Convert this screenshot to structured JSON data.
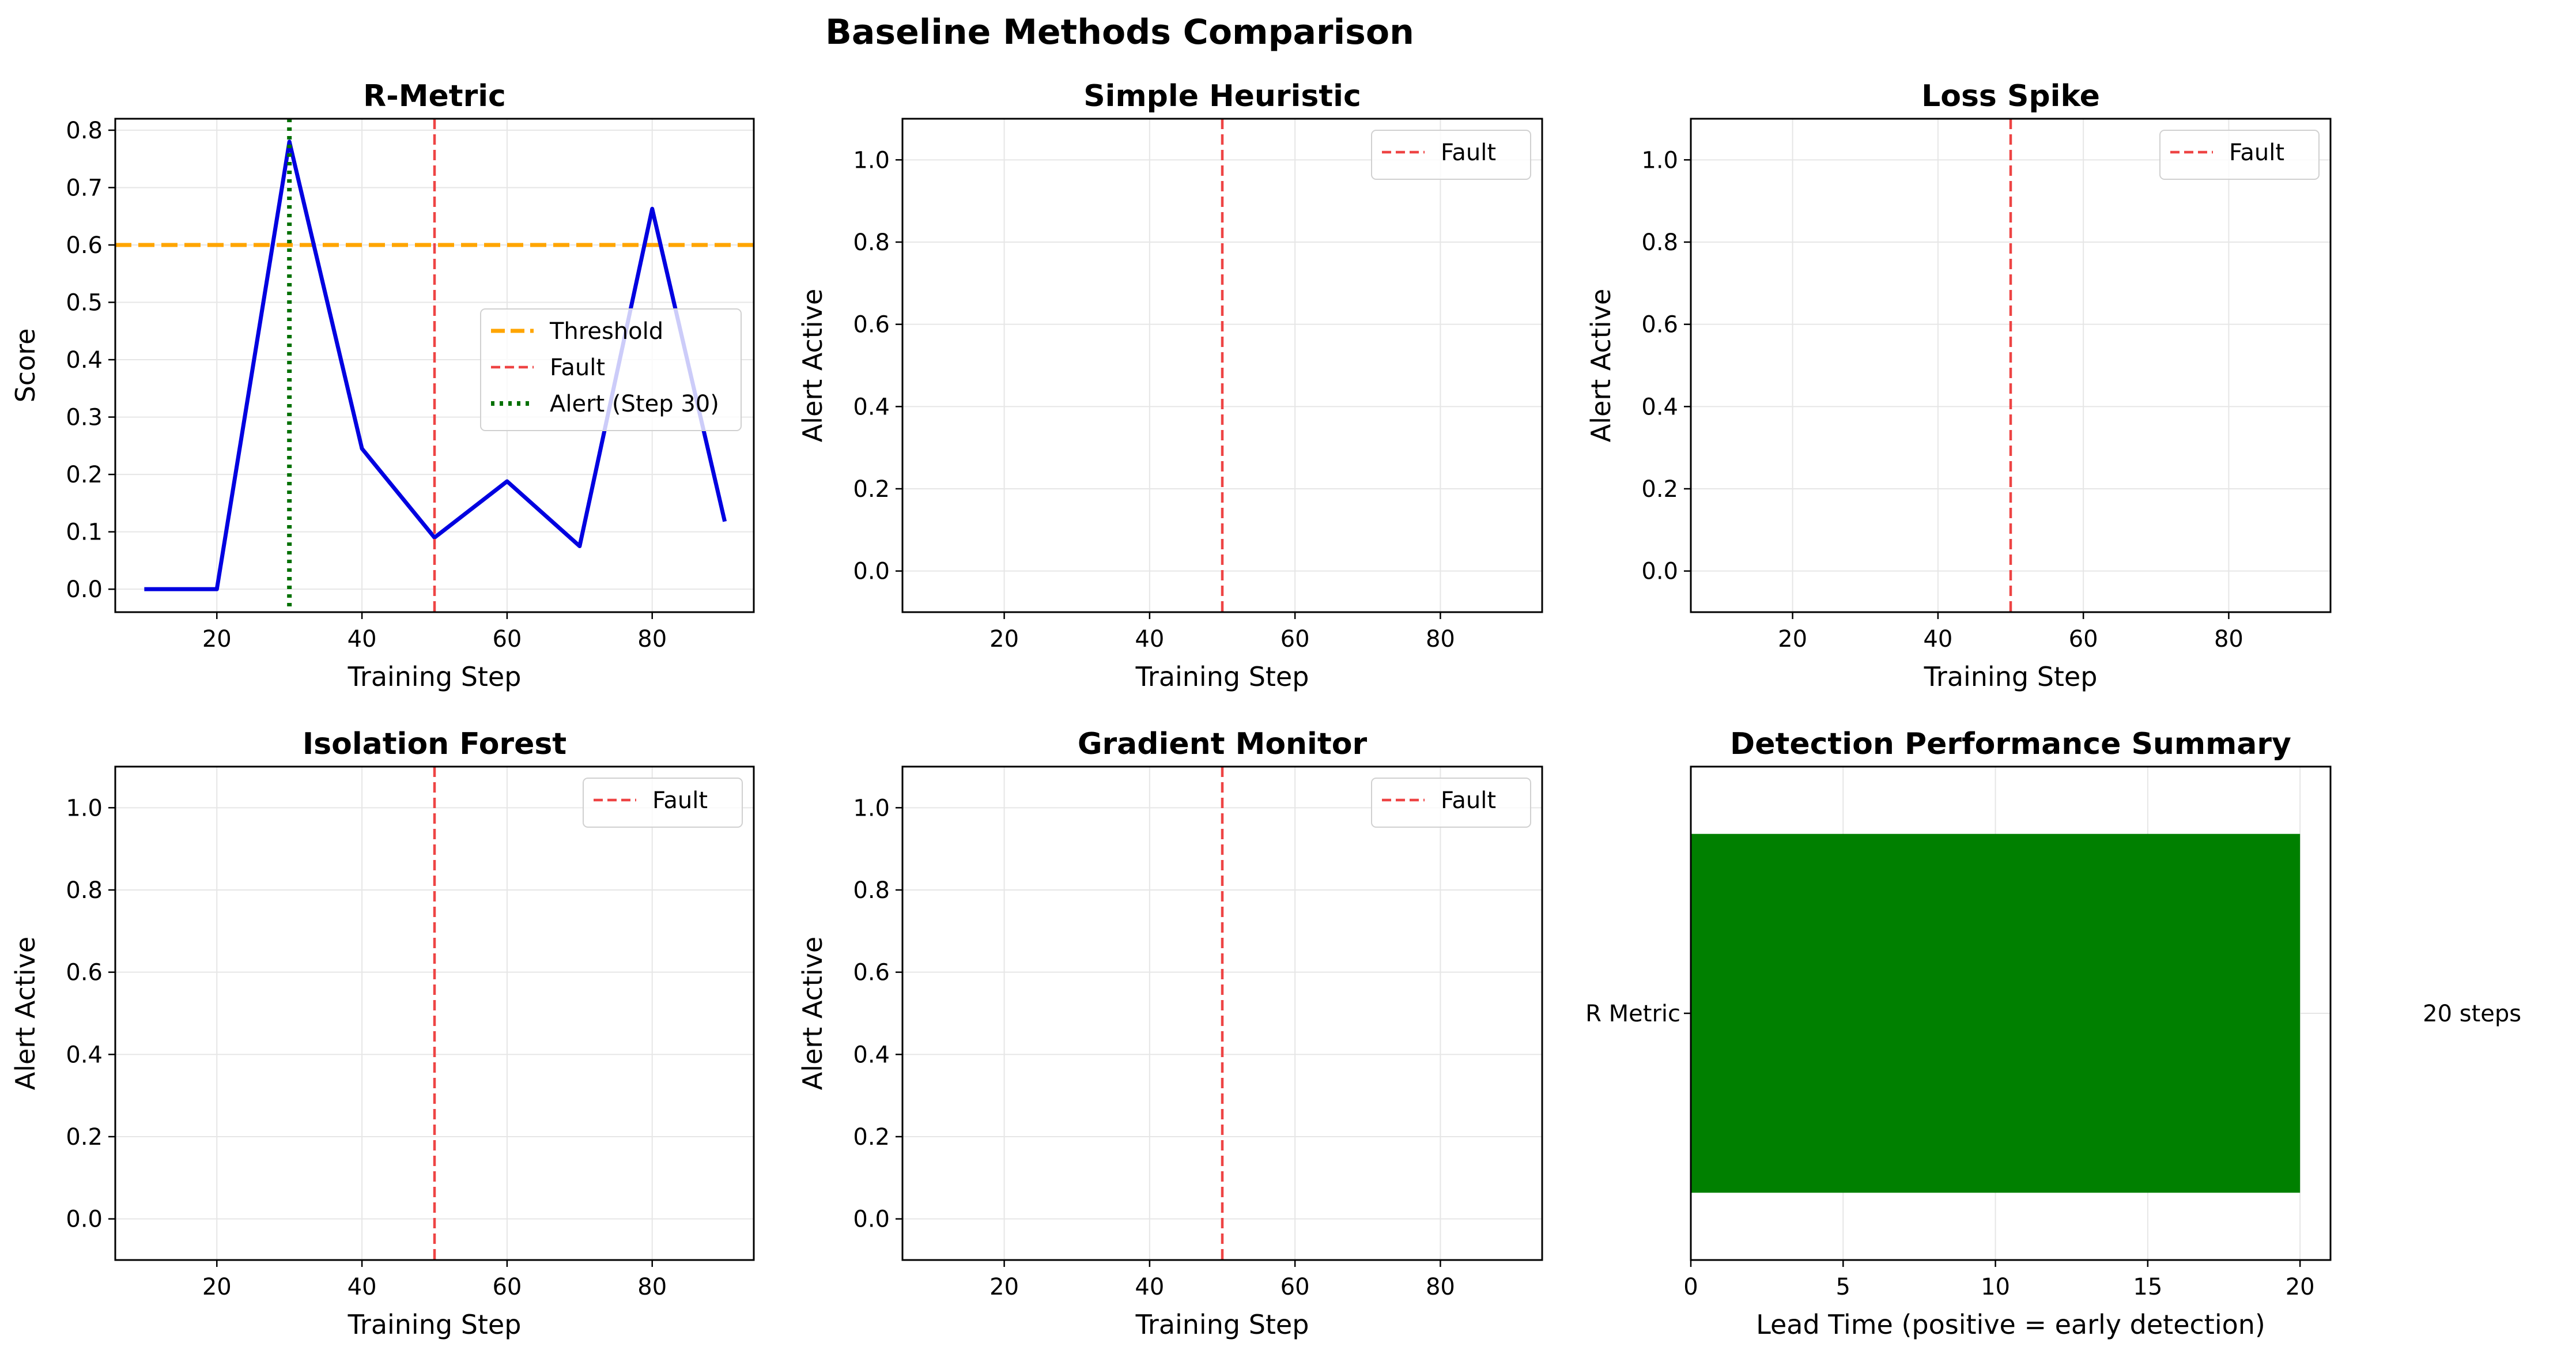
{
  "title": "Baseline Methods Comparison",
  "colors": {
    "score_line": "#0000e0",
    "threshold": "#ffa500",
    "fault": "#ee4444",
    "alert": "#007000",
    "bar": "#008000",
    "grid": "#e6e6e6"
  },
  "chart_data": [
    {
      "type": "line",
      "title": "R-Metric",
      "xlabel": "Training Step",
      "ylabel": "Score",
      "xlim": [
        6,
        94
      ],
      "ylim": [
        -0.04,
        0.82
      ],
      "xticks": [
        20,
        40,
        60,
        80
      ],
      "yticks": [
        0.0,
        0.1,
        0.2,
        0.3,
        0.4,
        0.5,
        0.6,
        0.7,
        0.8
      ],
      "grid": true,
      "legend_position": "center-right",
      "x": [
        10,
        20,
        30,
        40,
        50,
        60,
        70,
        80,
        90
      ],
      "series": [
        {
          "values": [
            0.0,
            0.0,
            0.78,
            0.245,
            0.09,
            0.188,
            0.075,
            0.663,
            0.118
          ]
        }
      ],
      "hlines": [
        {
          "name": "Threshold",
          "y": 0.6
        }
      ],
      "vlines": [
        {
          "name": "Fault",
          "x": 50
        },
        {
          "name": "Alert (Step 30)",
          "x": 30
        }
      ]
    },
    {
      "type": "line",
      "title": "Simple Heuristic",
      "xlabel": "Training Step",
      "ylabel": "Alert Active",
      "xlim": [
        6,
        94
      ],
      "ylim": [
        -0.1,
        1.1
      ],
      "xticks": [
        20,
        40,
        60,
        80
      ],
      "yticks": [
        0.0,
        0.2,
        0.4,
        0.6,
        0.8,
        1.0
      ],
      "grid": true,
      "legend_position": "top-right",
      "vlines": [
        {
          "name": "Fault",
          "x": 50
        }
      ]
    },
    {
      "type": "line",
      "title": "Loss Spike",
      "xlabel": "Training Step",
      "ylabel": "Alert Active",
      "xlim": [
        6,
        94
      ],
      "ylim": [
        -0.1,
        1.1
      ],
      "xticks": [
        20,
        40,
        60,
        80
      ],
      "yticks": [
        0.0,
        0.2,
        0.4,
        0.6,
        0.8,
        1.0
      ],
      "grid": true,
      "legend_position": "top-right",
      "vlines": [
        {
          "name": "Fault",
          "x": 50
        }
      ]
    },
    {
      "type": "line",
      "title": "Isolation Forest",
      "xlabel": "Training Step",
      "ylabel": "Alert Active",
      "xlim": [
        6,
        94
      ],
      "ylim": [
        -0.1,
        1.1
      ],
      "xticks": [
        20,
        40,
        60,
        80
      ],
      "yticks": [
        0.0,
        0.2,
        0.4,
        0.6,
        0.8,
        1.0
      ],
      "grid": true,
      "legend_position": "top-right",
      "vlines": [
        {
          "name": "Fault",
          "x": 50
        }
      ]
    },
    {
      "type": "line",
      "title": "Gradient Monitor",
      "xlabel": "Training Step",
      "ylabel": "Alert Active",
      "xlim": [
        6,
        94
      ],
      "ylim": [
        -0.1,
        1.1
      ],
      "xticks": [
        20,
        40,
        60,
        80
      ],
      "yticks": [
        0.0,
        0.2,
        0.4,
        0.6,
        0.8,
        1.0
      ],
      "grid": true,
      "legend_position": "top-right",
      "vlines": [
        {
          "name": "Fault",
          "x": 50
        }
      ]
    },
    {
      "type": "bar",
      "orientation": "horizontal",
      "title": "Detection Performance Summary",
      "xlabel": "Lead Time (positive = early detection)",
      "ylabel": "",
      "xlim": [
        0,
        21
      ],
      "xticks": [
        0,
        5,
        10,
        15,
        20
      ],
      "grid": true,
      "categories": [
        "R Metric"
      ],
      "values": [
        20
      ],
      "value_labels": [
        "20 steps"
      ]
    }
  ]
}
